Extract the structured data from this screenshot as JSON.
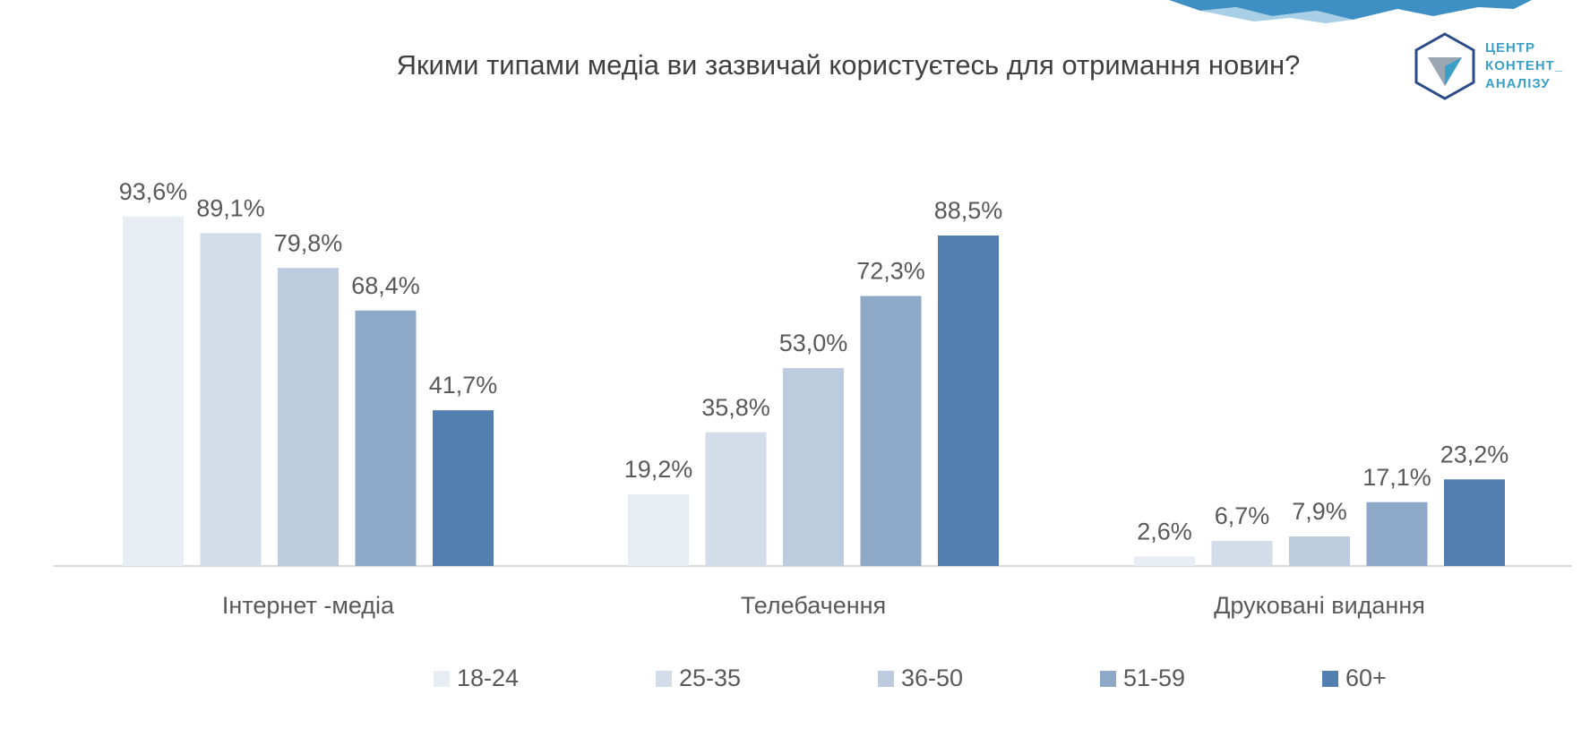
{
  "chart_data": {
    "type": "bar",
    "title": "Якими типами медіа ви зазвичай користуєтесь для отримання новин?",
    "categories": [
      "Інтернет -медіа",
      "Телебачення",
      "Друковані видання"
    ],
    "series": [
      {
        "name": "18-24",
        "color": "#e8edf4",
        "values": [
          93.6,
          19.2,
          2.6
        ],
        "value_labels": [
          "93,6%",
          "19,2%",
          "2,6%"
        ]
      },
      {
        "name": "25-35",
        "color": "#d2dde9",
        "values": [
          89.1,
          35.8,
          6.7
        ],
        "value_labels": [
          "89,1%",
          "35,8%",
          "6,7%"
        ]
      },
      {
        "name": "36-50",
        "color": "#bccbdd",
        "values": [
          79.8,
          53.0,
          7.9
        ],
        "value_labels": [
          "79,8%",
          "53,0%",
          "7,9%"
        ]
      },
      {
        "name": "51-59",
        "color": "#8ea9c8",
        "values": [
          68.4,
          72.3,
          17.1
        ],
        "value_labels": [
          "68,4%",
          "72,3%",
          "17,1%"
        ]
      },
      {
        "name": "60+",
        "color": "#527fb0",
        "values": [
          41.7,
          88.5,
          23.2
        ],
        "value_labels": [
          "41,7%",
          "88,5%",
          "23,2%"
        ]
      }
    ],
    "legend": "bottom"
  },
  "logo": {
    "lines": [
      "ЦЕНТР",
      "КОНТЕНТ_",
      "АНАЛІЗУ"
    ]
  }
}
